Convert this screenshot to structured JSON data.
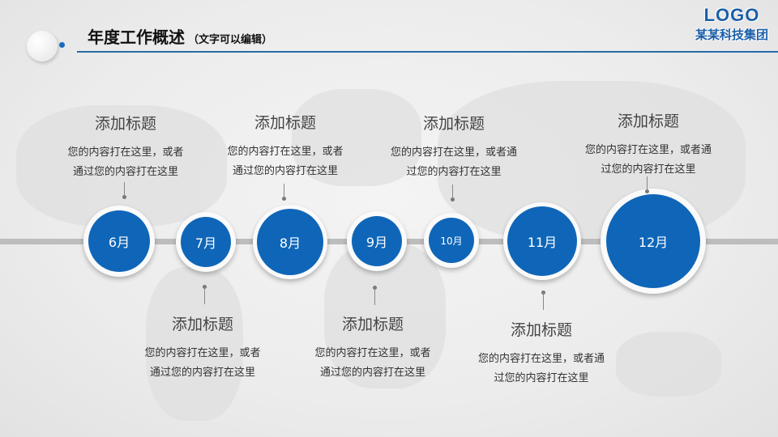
{
  "header": {
    "title": "年度工作概述",
    "subtitle": "（文字可以编辑）"
  },
  "logo": {
    "mark": "LOGO",
    "company": "某某科技集团"
  },
  "colors": {
    "accent": "#0f66b8",
    "line": "#bdbdbd"
  },
  "nodes": [
    {
      "label": "6月",
      "title": "添加标题",
      "desc1": "您的内容打在这里，或者",
      "desc2": "通过您的内容打在这里"
    },
    {
      "label": "7月",
      "title": "添加标题",
      "desc1": "您的内容打在这里，或者",
      "desc2": "通过您的内容打在这里"
    },
    {
      "label": "8月",
      "title": "添加标题",
      "desc1": "您的内容打在这里，或者",
      "desc2": "通过您的内容打在这里"
    },
    {
      "label": "9月",
      "title": "添加标题",
      "desc1": "您的内容打在这里，或者",
      "desc2": "通过您的内容打在这里"
    },
    {
      "label": "10月",
      "title": "添加标题",
      "desc1": "您的内容打在这里，或者通",
      "desc2": "过您的内容打在这里"
    },
    {
      "label": "11月",
      "title": "添加标题",
      "desc1": "您的内容打在这里，或者通",
      "desc2": "过您的内容打在这里"
    },
    {
      "label": "12月",
      "title": "添加标题",
      "desc1": "您的内容打在这里，或者通",
      "desc2": "过您的内容打在这里"
    }
  ]
}
